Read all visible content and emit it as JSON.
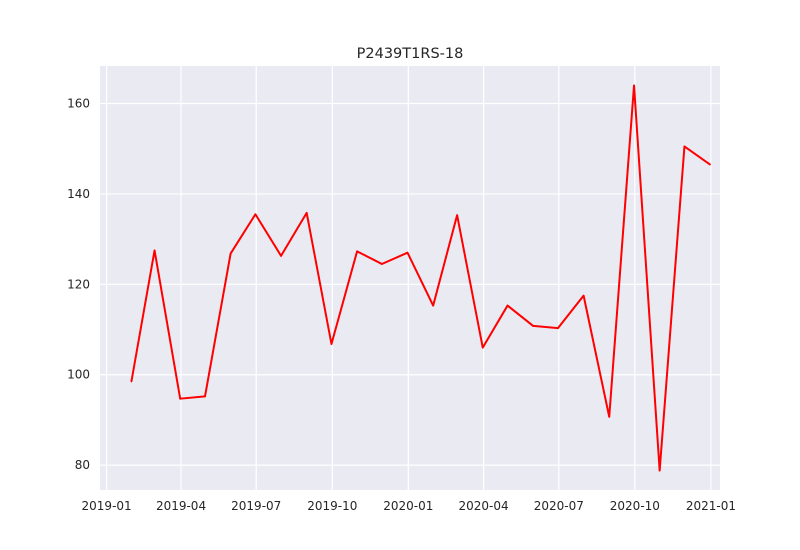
{
  "chart_data": {
    "type": "line",
    "title": "P2439T1RS-18",
    "xlabel": "",
    "ylabel": "",
    "x_ticks": [
      "2019-01",
      "2019-04",
      "2019-07",
      "2019-10",
      "2020-01",
      "2020-04",
      "2020-07",
      "2020-10",
      "2021-01"
    ],
    "y_ticks": [
      "80",
      "100",
      "120",
      "140",
      "160"
    ],
    "grid": true,
    "series": [
      {
        "color": "#ff0000",
        "points": [
          {
            "x": "2019-01-31",
            "y": 98.5
          },
          {
            "x": "2019-02-28",
            "y": 127.5
          },
          {
            "x": "2019-03-31",
            "y": 94.7
          },
          {
            "x": "2019-04-30",
            "y": 95.2
          },
          {
            "x": "2019-05-31",
            "y": 126.8
          },
          {
            "x": "2019-06-30",
            "y": 135.5
          },
          {
            "x": "2019-07-31",
            "y": 126.3
          },
          {
            "x": "2019-08-31",
            "y": 135.8
          },
          {
            "x": "2019-09-30",
            "y": 106.8
          },
          {
            "x": "2019-10-31",
            "y": 127.3
          },
          {
            "x": "2019-11-30",
            "y": 124.5
          },
          {
            "x": "2019-12-31",
            "y": 127.0
          },
          {
            "x": "2020-01-31",
            "y": 115.3
          },
          {
            "x": "2020-02-29",
            "y": 135.3
          },
          {
            "x": "2020-03-31",
            "y": 106.0
          },
          {
            "x": "2020-04-30",
            "y": 115.3
          },
          {
            "x": "2020-05-31",
            "y": 110.8
          },
          {
            "x": "2020-06-30",
            "y": 110.3
          },
          {
            "x": "2020-07-31",
            "y": 117.5
          },
          {
            "x": "2020-08-31",
            "y": 90.7
          },
          {
            "x": "2020-09-30",
            "y": 164.0
          },
          {
            "x": "2020-10-31",
            "y": 78.8
          },
          {
            "x": "2020-11-30",
            "y": 150.5
          },
          {
            "x": "2020-12-31",
            "y": 146.5
          }
        ]
      }
    ],
    "xlim": [
      "2018-12-24",
      "2021-01-12"
    ],
    "ylim": [
      74.5,
      168.3
    ]
  },
  "colors": {
    "plot_background": "#eaeaf2",
    "grid": "#ffffff",
    "line": "#ff0000"
  }
}
